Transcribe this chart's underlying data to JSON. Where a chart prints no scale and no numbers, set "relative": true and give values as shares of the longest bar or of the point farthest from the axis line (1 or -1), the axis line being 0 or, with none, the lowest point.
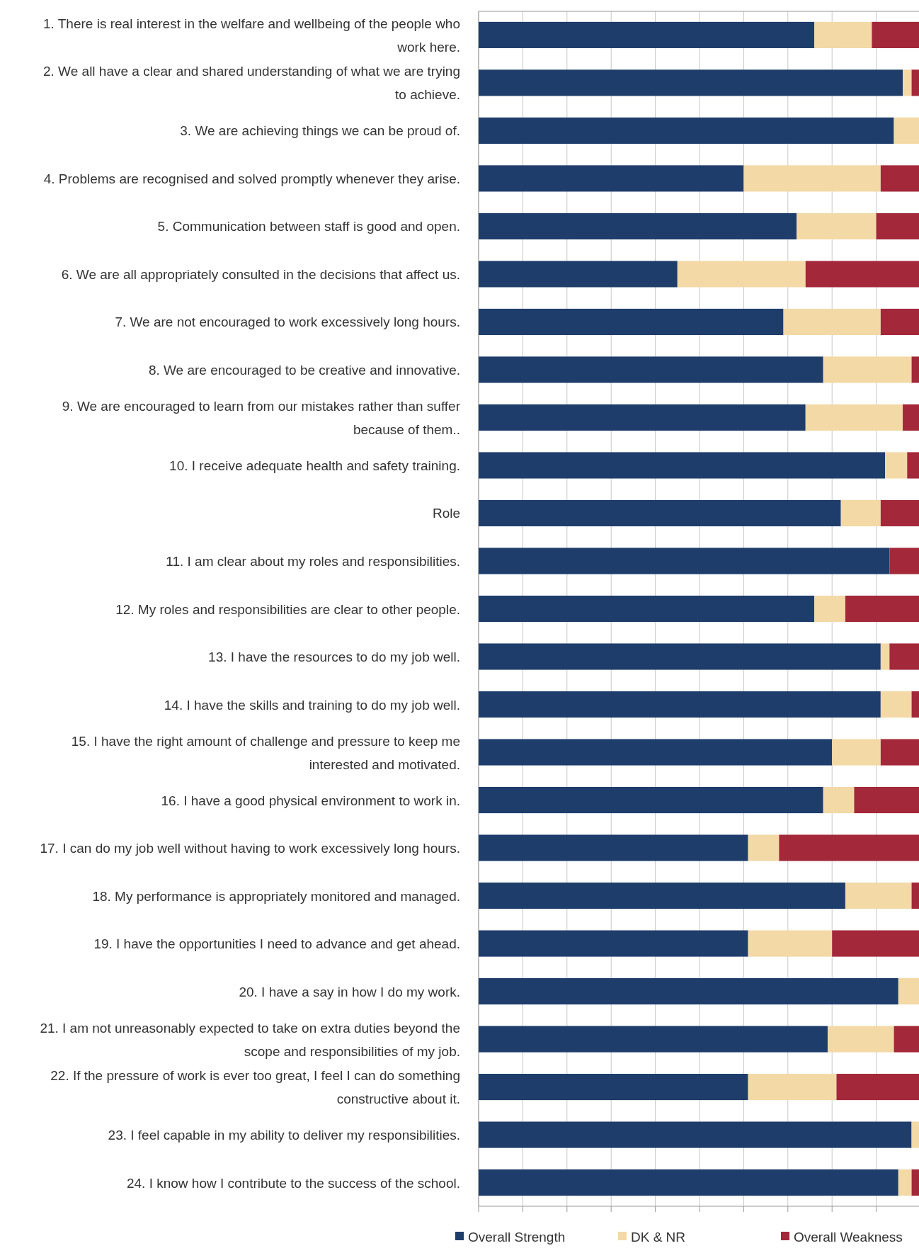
{
  "chart_data": {
    "type": "bar",
    "orientation": "horizontal",
    "stacked": true,
    "relative": true,
    "grid": true,
    "legend": "bottom",
    "categories": [
      "1. There is real interest in the welfare and wellbeing of the people who work here.",
      "2. We all have a clear and shared understanding of what we are trying to achieve.",
      "3. We are achieving things we can be proud of.",
      "4. Problems are recognised and solved promptly whenever they arise.",
      "5. Communication between staff is good and open.",
      "6. We are all appropriately consulted in the decisions that affect us.",
      "7. We are not encouraged to work excessively long hours.",
      "8. We are encouraged to be creative and innovative.",
      "9. We are encouraged to learn from our mistakes rather than suffer because of them..",
      "10. I receive adequate health and safety training.",
      "Role",
      "11. I am clear about my roles and responsibilities.",
      "12. My roles and responsibilities are clear to other people.",
      "13. I have the resources to do my job well.",
      "14. I have the skills and training to do my job well.",
      "15. I have the right amount of challenge and pressure to keep me interested and motivated.",
      "16. I have a good physical environment to work in.",
      "17. I can do my job well without having to work excessively long hours.",
      "18. My performance is appropriately monitored and managed.",
      "19. I have the opportunities I need to advance and get ahead.",
      "20. I have a say in how I do my work.",
      "21. I am not unreasonably expected to take on extra duties beyond the scope and responsibilities of my job.",
      "22. If the pressure of work is ever too great, I feel I can do something constructive about it.",
      "23. I feel capable in my ability to deliver my responsibilities.",
      "24. I know how I contribute to the success of the school."
    ],
    "series": [
      {
        "name": "Overall Strength",
        "color": "#1f3d6b",
        "values": [
          0.76,
          0.96,
          0.94,
          0.6,
          0.72,
          0.45,
          0.69,
          0.78,
          0.74,
          0.92,
          0.82,
          0.93,
          0.76,
          0.91,
          0.91,
          0.8,
          0.78,
          0.61,
          0.83,
          0.61,
          0.95,
          0.79,
          0.61,
          0.98,
          0.95
        ]
      },
      {
        "name": "DK & NR",
        "color": "#f3d9a6",
        "values": [
          0.13,
          0.02,
          0.06,
          0.31,
          0.18,
          0.29,
          0.22,
          0.2,
          0.22,
          0.05,
          0.09,
          0,
          0.07,
          0.02,
          0.07,
          0.11,
          0.07,
          0.07,
          0.15,
          0.19,
          0.05,
          0.15,
          0.2,
          0.02,
          0.03
        ]
      },
      {
        "name": "Overall Weakness",
        "color": "#a3283a",
        "values": [
          0.11,
          0.02,
          0,
          0.09,
          0.1,
          0.26,
          0.09,
          0.02,
          0.04,
          0.03,
          0.09,
          0.07,
          0.17,
          0.07,
          0.02,
          0.09,
          0.15,
          0.32,
          0.02,
          0.2,
          0,
          0.06,
          0.19,
          0,
          0.02
        ]
      }
    ]
  }
}
